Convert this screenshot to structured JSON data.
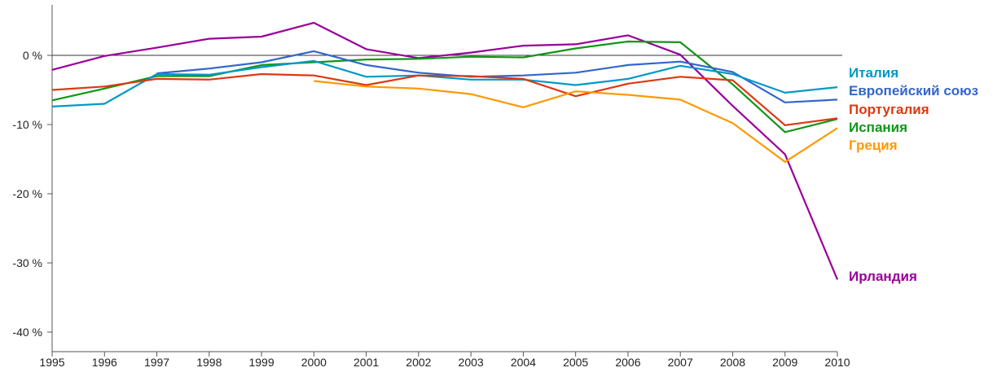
{
  "chart_data": {
    "type": "line",
    "x": [
      "1995",
      "1996",
      "1997",
      "1998",
      "1999",
      "2000",
      "2001",
      "2002",
      "2003",
      "2004",
      "2005",
      "2006",
      "2007",
      "2008",
      "2009",
      "2010"
    ],
    "ylim": [
      -42,
      6
    ],
    "y_ticks": [
      {
        "value": 0,
        "label": "0 %"
      },
      {
        "value": -10,
        "label": "-10 %"
      },
      {
        "value": -20,
        "label": "-20 %"
      },
      {
        "value": -30,
        "label": "-30 %"
      },
      {
        "value": -40,
        "label": "-40 %"
      }
    ],
    "series": [
      {
        "name": "Ирландия",
        "color": "#990099",
        "values": [
          -2.1,
          -0.1,
          1.1,
          2.4,
          2.7,
          4.7,
          0.9,
          -0.4,
          0.4,
          1.4,
          1.6,
          2.9,
          0.1,
          -7.3,
          -14.3,
          -32.4
        ]
      },
      {
        "name": "Испания",
        "color": "#109618",
        "values": [
          -6.5,
          -4.8,
          -3.0,
          -3.0,
          -1.4,
          -1.0,
          -0.6,
          -0.5,
          -0.2,
          -0.3,
          1.0,
          2.0,
          1.9,
          -4.2,
          -11.1,
          -9.2
        ]
      },
      {
        "name": "Европейский союз",
        "color": "#3366cc",
        "values": [
          null,
          null,
          -2.6,
          -1.9,
          -1.0,
          0.6,
          -1.4,
          -2.5,
          -3.1,
          -2.9,
          -2.5,
          -1.4,
          -0.9,
          -2.4,
          -6.8,
          -6.4
        ]
      },
      {
        "name": "Италия",
        "color": "#0099c6",
        "values": [
          -7.4,
          -7.0,
          -2.7,
          -2.8,
          -1.7,
          -0.8,
          -3.1,
          -2.9,
          -3.5,
          -3.5,
          -4.3,
          -3.4,
          -1.5,
          -2.7,
          -5.4,
          -4.6
        ]
      },
      {
        "name": "Португалия",
        "color": "#dc3912",
        "values": [
          -5.0,
          -4.5,
          -3.4,
          -3.5,
          -2.7,
          -2.9,
          -4.3,
          -2.9,
          -3.0,
          -3.4,
          -5.9,
          -4.1,
          -3.1,
          -3.6,
          -10.1,
          -9.1
        ]
      },
      {
        "name": "Греция",
        "color": "#ff9900",
        "values": [
          null,
          null,
          null,
          null,
          null,
          -3.7,
          -4.5,
          -4.8,
          -5.6,
          -7.5,
          -5.2,
          -5.7,
          -6.4,
          -9.8,
          -15.4,
          -10.5
        ]
      }
    ],
    "legend_order": [
      "Италия",
      "Европейский союз",
      "Португалия",
      "Испания",
      "Греция",
      "Ирландия"
    ],
    "legend_placement": "right (end-of-line labels)",
    "grid": false,
    "zero_line": true
  }
}
